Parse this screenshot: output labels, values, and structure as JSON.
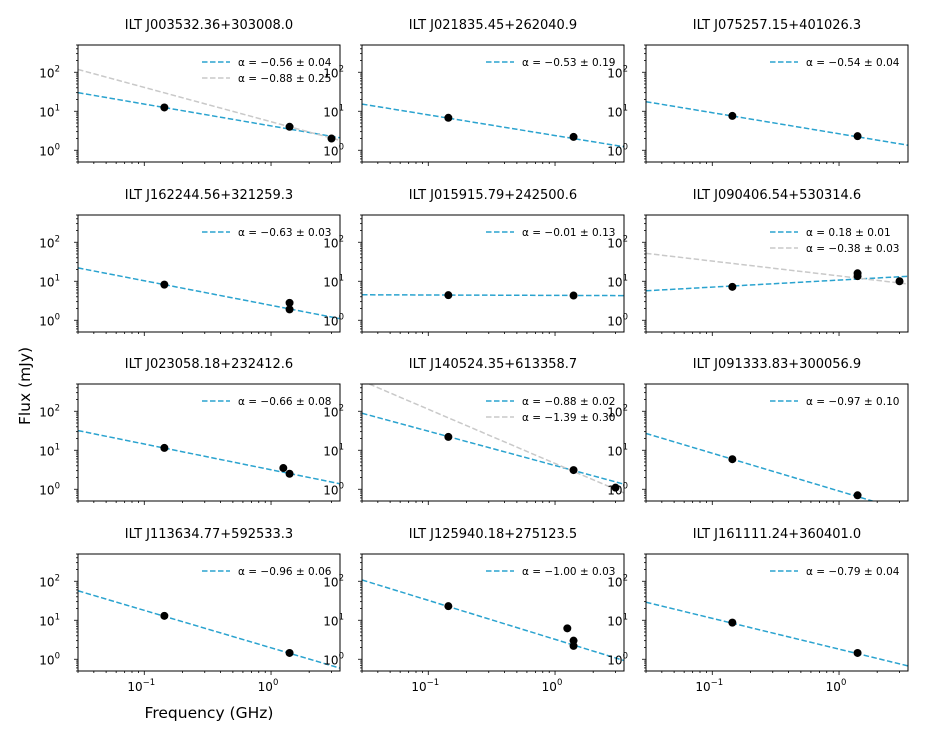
{
  "figure": {
    "xlabel": "Frequency (GHz)",
    "ylabel": "Flux (mJy)"
  },
  "chart_data": [
    {
      "type": "scatter",
      "title": "ILT J003532.36+303008.0",
      "xscale": "log",
      "yscale": "log",
      "xlim": [
        0.03,
        3.5
      ],
      "ylim": [
        0.5,
        500
      ],
      "points": [
        {
          "x": 0.144,
          "y": 12.5
        },
        {
          "x": 1.4,
          "y": 4.0
        },
        {
          "x": 3.0,
          "y": 2.0
        }
      ],
      "fits": [
        {
          "label": "α = −0.56 ± 0.04",
          "alpha": -0.56,
          "x0": 0.03,
          "y0": 30,
          "color": "#2aa3cf"
        },
        {
          "label": "α = −0.88 ± 0.25",
          "alpha": -0.88,
          "x0": 0.03,
          "y0": 118,
          "color": "#c9c9c9"
        }
      ]
    },
    {
      "type": "scatter",
      "title": "ILT J021835.45+262040.9",
      "xscale": "log",
      "yscale": "log",
      "xlim": [
        0.03,
        3.5
      ],
      "ylim": [
        0.5,
        500
      ],
      "points": [
        {
          "x": 0.144,
          "y": 6.8
        },
        {
          "x": 1.4,
          "y": 2.2
        }
      ],
      "fits": [
        {
          "label": "α = −0.53 ± 0.19",
          "alpha": -0.53,
          "x0": 0.03,
          "y0": 15.3,
          "color": "#2aa3cf"
        }
      ]
    },
    {
      "type": "scatter",
      "title": "ILT J075257.15+401026.3",
      "xscale": "log",
      "yscale": "log",
      "xlim": [
        0.03,
        3.5
      ],
      "ylim": [
        0.5,
        500
      ],
      "points": [
        {
          "x": 0.144,
          "y": 7.6
        },
        {
          "x": 1.4,
          "y": 2.3
        }
      ],
      "fits": [
        {
          "label": "α = −0.54 ± 0.04",
          "alpha": -0.54,
          "x0": 0.03,
          "y0": 17.6,
          "color": "#2aa3cf"
        }
      ]
    },
    {
      "type": "scatter",
      "title": "ILT J162244.56+321259.3",
      "xscale": "log",
      "yscale": "log",
      "xlim": [
        0.03,
        3.5
      ],
      "ylim": [
        0.5,
        500
      ],
      "points": [
        {
          "x": 0.144,
          "y": 8.2
        },
        {
          "x": 1.4,
          "y": 2.8
        },
        {
          "x": 1.4,
          "y": 1.9
        }
      ],
      "fits": [
        {
          "label": "α = −0.63 ± 0.03",
          "alpha": -0.63,
          "x0": 0.03,
          "y0": 22,
          "color": "#2aa3cf"
        }
      ]
    },
    {
      "type": "scatter",
      "title": "ILT J015915.79+242500.6",
      "xscale": "log",
      "yscale": "log",
      "xlim": [
        0.03,
        3.5
      ],
      "ylim": [
        0.5,
        500
      ],
      "points": [
        {
          "x": 0.144,
          "y": 4.4
        },
        {
          "x": 1.4,
          "y": 4.3
        }
      ],
      "fits": [
        {
          "label": "α = −0.01 ± 0.13",
          "alpha": -0.01,
          "x0": 0.03,
          "y0": 4.5,
          "color": "#2aa3cf"
        }
      ]
    },
    {
      "type": "scatter",
      "title": "ILT J090406.54+530314.6",
      "xscale": "log",
      "yscale": "log",
      "xlim": [
        0.03,
        3.5
      ],
      "ylim": [
        0.5,
        500
      ],
      "points": [
        {
          "x": 0.144,
          "y": 7.2
        },
        {
          "x": 1.4,
          "y": 16
        },
        {
          "x": 1.4,
          "y": 13.5
        },
        {
          "x": 3.0,
          "y": 10
        }
      ],
      "fits": [
        {
          "label": "α = 0.18 ± 0.01",
          "alpha": 0.18,
          "x0": 0.03,
          "y0": 5.7,
          "color": "#2aa3cf"
        },
        {
          "label": "α = −0.38 ± 0.03",
          "alpha": -0.38,
          "x0": 0.03,
          "y0": 52,
          "color": "#c9c9c9"
        }
      ]
    },
    {
      "type": "scatter",
      "title": "ILT J023058.18+232412.6",
      "xscale": "log",
      "yscale": "log",
      "xlim": [
        0.03,
        3.5
      ],
      "ylim": [
        0.5,
        500
      ],
      "points": [
        {
          "x": 0.144,
          "y": 11.5
        },
        {
          "x": 1.25,
          "y": 3.5
        },
        {
          "x": 1.4,
          "y": 2.5
        }
      ],
      "fits": [
        {
          "label": "α = −0.66 ± 0.08",
          "alpha": -0.66,
          "x0": 0.03,
          "y0": 32,
          "color": "#2aa3cf"
        }
      ]
    },
    {
      "type": "scatter",
      "title": "ILT J140524.35+613358.7",
      "xscale": "log",
      "yscale": "log",
      "xlim": [
        0.03,
        3.5
      ],
      "ylim": [
        0.5,
        500
      ],
      "points": [
        {
          "x": 0.144,
          "y": 22
        },
        {
          "x": 1.4,
          "y": 3.1
        },
        {
          "x": 3.0,
          "y": 1.1
        }
      ],
      "fits": [
        {
          "label": "α = −0.88 ± 0.02",
          "alpha": -0.88,
          "x0": 0.03,
          "y0": 89,
          "color": "#2aa3cf"
        },
        {
          "label": "α = −1.39 ± 0.30",
          "alpha": -1.39,
          "x0": 0.03,
          "y0": 600,
          "color": "#c9c9c9"
        }
      ]
    },
    {
      "type": "scatter",
      "title": "ILT J091333.83+300056.9",
      "xscale": "log",
      "yscale": "log",
      "xlim": [
        0.03,
        3.5
      ],
      "ylim": [
        0.5,
        500
      ],
      "points": [
        {
          "x": 0.144,
          "y": 5.9
        },
        {
          "x": 1.4,
          "y": 0.7
        }
      ],
      "fits": [
        {
          "label": "α = −0.97 ± 0.10",
          "alpha": -0.97,
          "x0": 0.03,
          "y0": 27,
          "color": "#2aa3cf"
        }
      ]
    },
    {
      "type": "scatter",
      "title": "ILT J113634.77+592533.3",
      "xscale": "log",
      "yscale": "log",
      "xlim": [
        0.03,
        3.5
      ],
      "ylim": [
        0.5,
        500
      ],
      "xticks": [
        "10^-1",
        "10^0"
      ],
      "points": [
        {
          "x": 0.144,
          "y": 13
        },
        {
          "x": 1.4,
          "y": 1.45
        }
      ],
      "fits": [
        {
          "label": "α = −0.96 ± 0.06",
          "alpha": -0.96,
          "x0": 0.03,
          "y0": 57,
          "color": "#2aa3cf"
        }
      ]
    },
    {
      "type": "scatter",
      "title": "ILT J125940.18+275123.5",
      "xscale": "log",
      "yscale": "log",
      "xlim": [
        0.03,
        3.5
      ],
      "ylim": [
        0.5,
        500
      ],
      "xticks": [
        "10^-1",
        "10^0"
      ],
      "points": [
        {
          "x": 0.144,
          "y": 23
        },
        {
          "x": 1.25,
          "y": 6.2
        },
        {
          "x": 1.4,
          "y": 3.0
        },
        {
          "x": 1.4,
          "y": 2.2
        }
      ],
      "fits": [
        {
          "label": "α = −1.00 ± 0.03",
          "alpha": -1.0,
          "x0": 0.03,
          "y0": 108,
          "color": "#2aa3cf"
        }
      ]
    },
    {
      "type": "scatter",
      "title": "ILT J161111.24+360401.0",
      "xscale": "log",
      "yscale": "log",
      "xlim": [
        0.03,
        3.5
      ],
      "ylim": [
        0.5,
        500
      ],
      "xticks": [
        "10^-1",
        "10^0"
      ],
      "points": [
        {
          "x": 0.144,
          "y": 8.7
        },
        {
          "x": 1.4,
          "y": 1.45
        }
      ],
      "fits": [
        {
          "label": "α = −0.79 ± 0.04",
          "alpha": -0.79,
          "x0": 0.03,
          "y0": 29,
          "color": "#2aa3cf"
        }
      ]
    }
  ]
}
